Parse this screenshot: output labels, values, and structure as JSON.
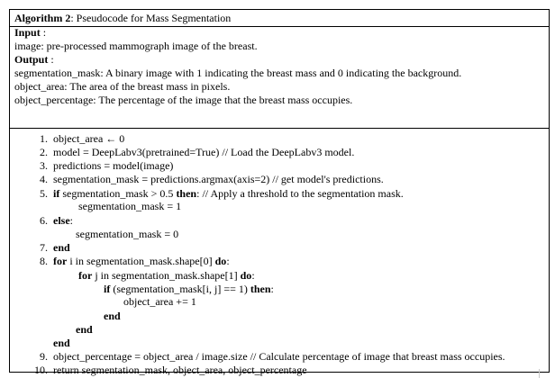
{
  "title": {
    "label": "Algorithm 2",
    "rest": ": Pseudocode for Mass Segmentation"
  },
  "input": {
    "heading": "Input",
    "colon": " :",
    "lines": [
      "image: pre-processed mammograph image of the breast."
    ]
  },
  "output": {
    "heading": "Output",
    "colon": " :",
    "lines": [
      "segmentation_mask: A binary image with 1 indicating the breast mass and 0 indicating the background.",
      "object_area: The area of the breast mass in pixels.",
      "object_percentage: The percentage of the image that the breast mass occupies."
    ]
  },
  "steps": {
    "s1": {
      "num": "1.",
      "text": "object_area ← 0"
    },
    "s2": {
      "num": "2.",
      "text": "model = DeepLabv3(pretrained=True) // Load the DeepLabv3 model."
    },
    "s3": {
      "num": "3.",
      "text": "predictions = model(image)"
    },
    "s4": {
      "num": "4.",
      "text": "segmentation_mask = predictions.argmax(axis=2) // get model's predictions."
    },
    "s5": {
      "num": "5.",
      "kw_if": "if",
      "cond": " segmentation_mask > 0.5 ",
      "kw_then": "then",
      "comment": ": // Apply a threshold to the segmentation mask."
    },
    "s5b": {
      "text": "segmentation_mask = 1"
    },
    "s6": {
      "num": "6.",
      "kw": "else",
      "rest": ":"
    },
    "s6b": {
      "text": "segmentation_mask = 0"
    },
    "s7": {
      "num": "7.",
      "kw": "end"
    },
    "s8": {
      "num": "8.",
      "kw_for": "for",
      "mid": " i in segmentation_mask.shape[0] ",
      "kw_do": "do",
      "rest": ":"
    },
    "s8b": {
      "kw_for": "for",
      "mid": " j in segmentation_mask.shape[1] ",
      "kw_do": "do",
      "rest": ":"
    },
    "s8c": {
      "kw_if": "if",
      "mid": " (segmentation_mask[i, j] == 1) ",
      "kw_then": "then",
      "rest": ":"
    },
    "s8d": {
      "text": "object_area += 1"
    },
    "s8e": {
      "kw": "end"
    },
    "s8f": {
      "kw": "end"
    },
    "s8g": {
      "kw": "end"
    },
    "s9": {
      "num": "9.",
      "text": "object_percentage = object_area / image.size // Calculate percentage of image that breast mass occupies."
    },
    "s10": {
      "num": "10.",
      "text": "return segmentation_mask, object_area, object_percentage"
    }
  }
}
